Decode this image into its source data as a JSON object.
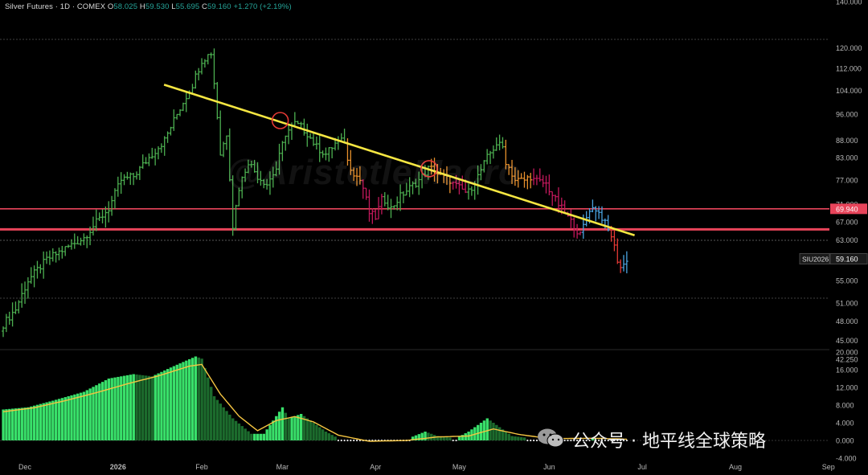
{
  "header": {
    "symbol": "Silver Futures · 1D · COMEX",
    "o_label": "O",
    "o_value": "58.025",
    "h_label": "H",
    "h_value": "59.530",
    "l_label": "L",
    "l_value": "55.695",
    "c_label": "C",
    "c_value": "59.160",
    "change": "+1.270 (+2.19%)"
  },
  "watermark": {
    "channel": "公众号 · 地平线全球策略",
    "chart_mark": "@AristotleMacro"
  },
  "colors": {
    "up": "#4caf50",
    "up_bright": "#5fd35f",
    "orange": "#e8902c",
    "magenta": "#c2185b",
    "blue": "#4aa3df",
    "red": "#e53935",
    "trendline": "#f5e642",
    "resistance": "#e8445a",
    "hist_bright": "#39e06a",
    "hist_dark": "#1c6b2d",
    "signal": "#f5c542"
  },
  "chart_data": [
    {
      "type": "candlestick",
      "title": "Silver Futures · 1D · COMEX",
      "yscale": "log",
      "ylim": [
        44,
        140
      ],
      "y_ticks": [
        "140.000",
        "120.000",
        "112.000",
        "104.000",
        "96.000",
        "88.000",
        "83.000",
        "77.000",
        "71.000",
        "67.000",
        "63.000",
        "59.000",
        "55.000",
        "51.000",
        "48.000",
        "45.000",
        "42.250"
      ],
      "x_ticks": [
        "Dec",
        "2026",
        "Feb",
        "Mar",
        "Apr",
        "May",
        "Jun",
        "Jul",
        "Aug",
        "Sep"
      ],
      "price_labels": [
        {
          "text": "69.940",
          "value": 69.94,
          "kind": "line"
        },
        {
          "text": "59.160",
          "value": 59.16,
          "kind": "last",
          "symbol": "SIU2026"
        }
      ],
      "hlines": [
        69.94,
        65.3
      ],
      "trendline": {
        "from": {
          "date": "2026-01-21",
          "value": 106
        },
        "to": {
          "date": "2026-06-28",
          "value": 64
        }
      },
      "markers": [
        {
          "date": "2026-03-01",
          "value": 94
        },
        {
          "date": "2026-04-20",
          "value": 80
        }
      ],
      "segments": [
        {
          "color": "up",
          "anchors": [
            [
              0,
              47.5
            ],
            [
              4,
              50
            ],
            [
              8,
              55
            ],
            [
              14,
              59
            ],
            [
              18,
              60.5
            ],
            [
              22,
              62
            ],
            [
              26,
              63.5
            ],
            [
              29,
              66
            ],
            [
              34,
              70
            ],
            [
              38,
              77
            ],
            [
              42,
              78
            ],
            [
              46,
              82
            ],
            [
              52,
              88
            ],
            [
              55,
              94
            ],
            [
              58,
              100
            ],
            [
              61,
              106
            ],
            [
              64,
              115
            ],
            [
              67,
              118
            ],
            [
              70,
              84
            ],
            [
              72,
              90
            ],
            [
              74,
              66
            ],
            [
              76,
              75
            ],
            [
              79,
              82
            ],
            [
              82,
              78
            ],
            [
              85,
              76
            ],
            [
              88,
              80
            ],
            [
              91,
              90
            ],
            [
              94,
              93
            ],
            [
              96,
              92
            ],
            [
              98,
              90
            ],
            [
              101,
              86
            ],
            [
              104,
              84
            ],
            [
              107,
              87
            ],
            [
              110,
              88
            ]
          ]
        },
        {
          "color": "orange",
          "anchors": [
            [
              111,
              82
            ],
            [
              113,
              79
            ],
            [
              115,
              77
            ]
          ]
        },
        {
          "color": "magenta",
          "anchors": [
            [
              116,
              75
            ],
            [
              118,
              69
            ],
            [
              120,
              68
            ],
            [
              122,
              72
            ]
          ]
        },
        {
          "color": "up",
          "anchors": [
            [
              123,
              72
            ],
            [
              125,
              70
            ],
            [
              128,
              73
            ],
            [
              131,
              75
            ],
            [
              134,
              77
            ],
            [
              137,
              80
            ]
          ]
        },
        {
          "color": "orange",
          "anchors": [
            [
              138,
              80
            ],
            [
              141,
              78
            ],
            [
              144,
              77
            ]
          ]
        },
        {
          "color": "magenta",
          "anchors": [
            [
              145,
              76
            ],
            [
              147,
              75
            ],
            [
              149,
              74
            ]
          ]
        },
        {
          "color": "up",
          "anchors": [
            [
              150,
              74
            ],
            [
              153,
              78
            ],
            [
              156,
              83
            ],
            [
              159,
              87
            ],
            [
              161,
              86
            ]
          ]
        },
        {
          "color": "orange",
          "anchors": [
            [
              162,
              82
            ],
            [
              165,
              77
            ],
            [
              168,
              77
            ],
            [
              170,
              78
            ]
          ]
        },
        {
          "color": "magenta",
          "anchors": [
            [
              171,
              77
            ],
            [
              175,
              76
            ],
            [
              178,
              72
            ],
            [
              181,
              69
            ],
            [
              184,
              66
            ],
            [
              186,
              64
            ]
          ]
        },
        {
          "color": "blue",
          "anchors": [
            [
              187,
              66
            ],
            [
              189,
              70
            ],
            [
              191,
              70
            ],
            [
              193,
              68
            ],
            [
              195,
              65
            ]
          ]
        },
        {
          "color": "red",
          "anchors": [
            [
              196,
              64
            ],
            [
              198,
              59
            ],
            [
              199,
              57.5
            ]
          ]
        },
        {
          "color": "blue",
          "anchors": [
            [
              200,
              58
            ],
            [
              201,
              59.16
            ]
          ]
        }
      ]
    },
    {
      "type": "histogram",
      "title": "",
      "ylim": [
        -4,
        20
      ],
      "y_ticks": [
        "20.000",
        "16.000",
        "12.000",
        "8.000",
        "4.000",
        "0.000",
        "-4.000"
      ],
      "histogram_anchors": [
        [
          0,
          7
        ],
        [
          8,
          7.5
        ],
        [
          16,
          9
        ],
        [
          26,
          11
        ],
        [
          34,
          14
        ],
        [
          42,
          15
        ],
        [
          48,
          14.5
        ],
        [
          54,
          16.5
        ],
        [
          62,
          19
        ],
        [
          64,
          18.5
        ],
        [
          68,
          10
        ],
        [
          74,
          5
        ],
        [
          80,
          1.5
        ],
        [
          84,
          1.5
        ],
        [
          90,
          7.5
        ],
        [
          92,
          5
        ],
        [
          96,
          6
        ],
        [
          100,
          4
        ],
        [
          104,
          2
        ],
        [
          108,
          0.5
        ],
        [
          112,
          -0.3
        ],
        [
          120,
          -0.5
        ],
        [
          130,
          0.3
        ],
        [
          136,
          2
        ],
        [
          140,
          1
        ],
        [
          146,
          0.5
        ],
        [
          150,
          2
        ],
        [
          156,
          5
        ],
        [
          160,
          3
        ],
        [
          164,
          1
        ],
        [
          170,
          0.5
        ],
        [
          176,
          0
        ],
        [
          180,
          -0.3
        ],
        [
          186,
          0
        ],
        [
          190,
          0.6
        ],
        [
          198,
          0.4
        ],
        [
          201,
          0.2
        ]
      ],
      "signal_anchors": [
        [
          0,
          6.5
        ],
        [
          10,
          7.4
        ],
        [
          20,
          9
        ],
        [
          30,
          10.8
        ],
        [
          40,
          12.8
        ],
        [
          50,
          14.6
        ],
        [
          60,
          16.8
        ],
        [
          64,
          17.2
        ],
        [
          70,
          10.5
        ],
        [
          76,
          5.5
        ],
        [
          82,
          2.2
        ],
        [
          88,
          4.5
        ],
        [
          94,
          5.4
        ],
        [
          100,
          4.2
        ],
        [
          108,
          1.2
        ],
        [
          118,
          -0.2
        ],
        [
          130,
          0
        ],
        [
          140,
          0.8
        ],
        [
          150,
          1
        ],
        [
          158,
          2.6
        ],
        [
          166,
          1.4
        ],
        [
          176,
          0.4
        ],
        [
          190,
          0.5
        ],
        [
          201,
          0.3
        ]
      ]
    }
  ]
}
